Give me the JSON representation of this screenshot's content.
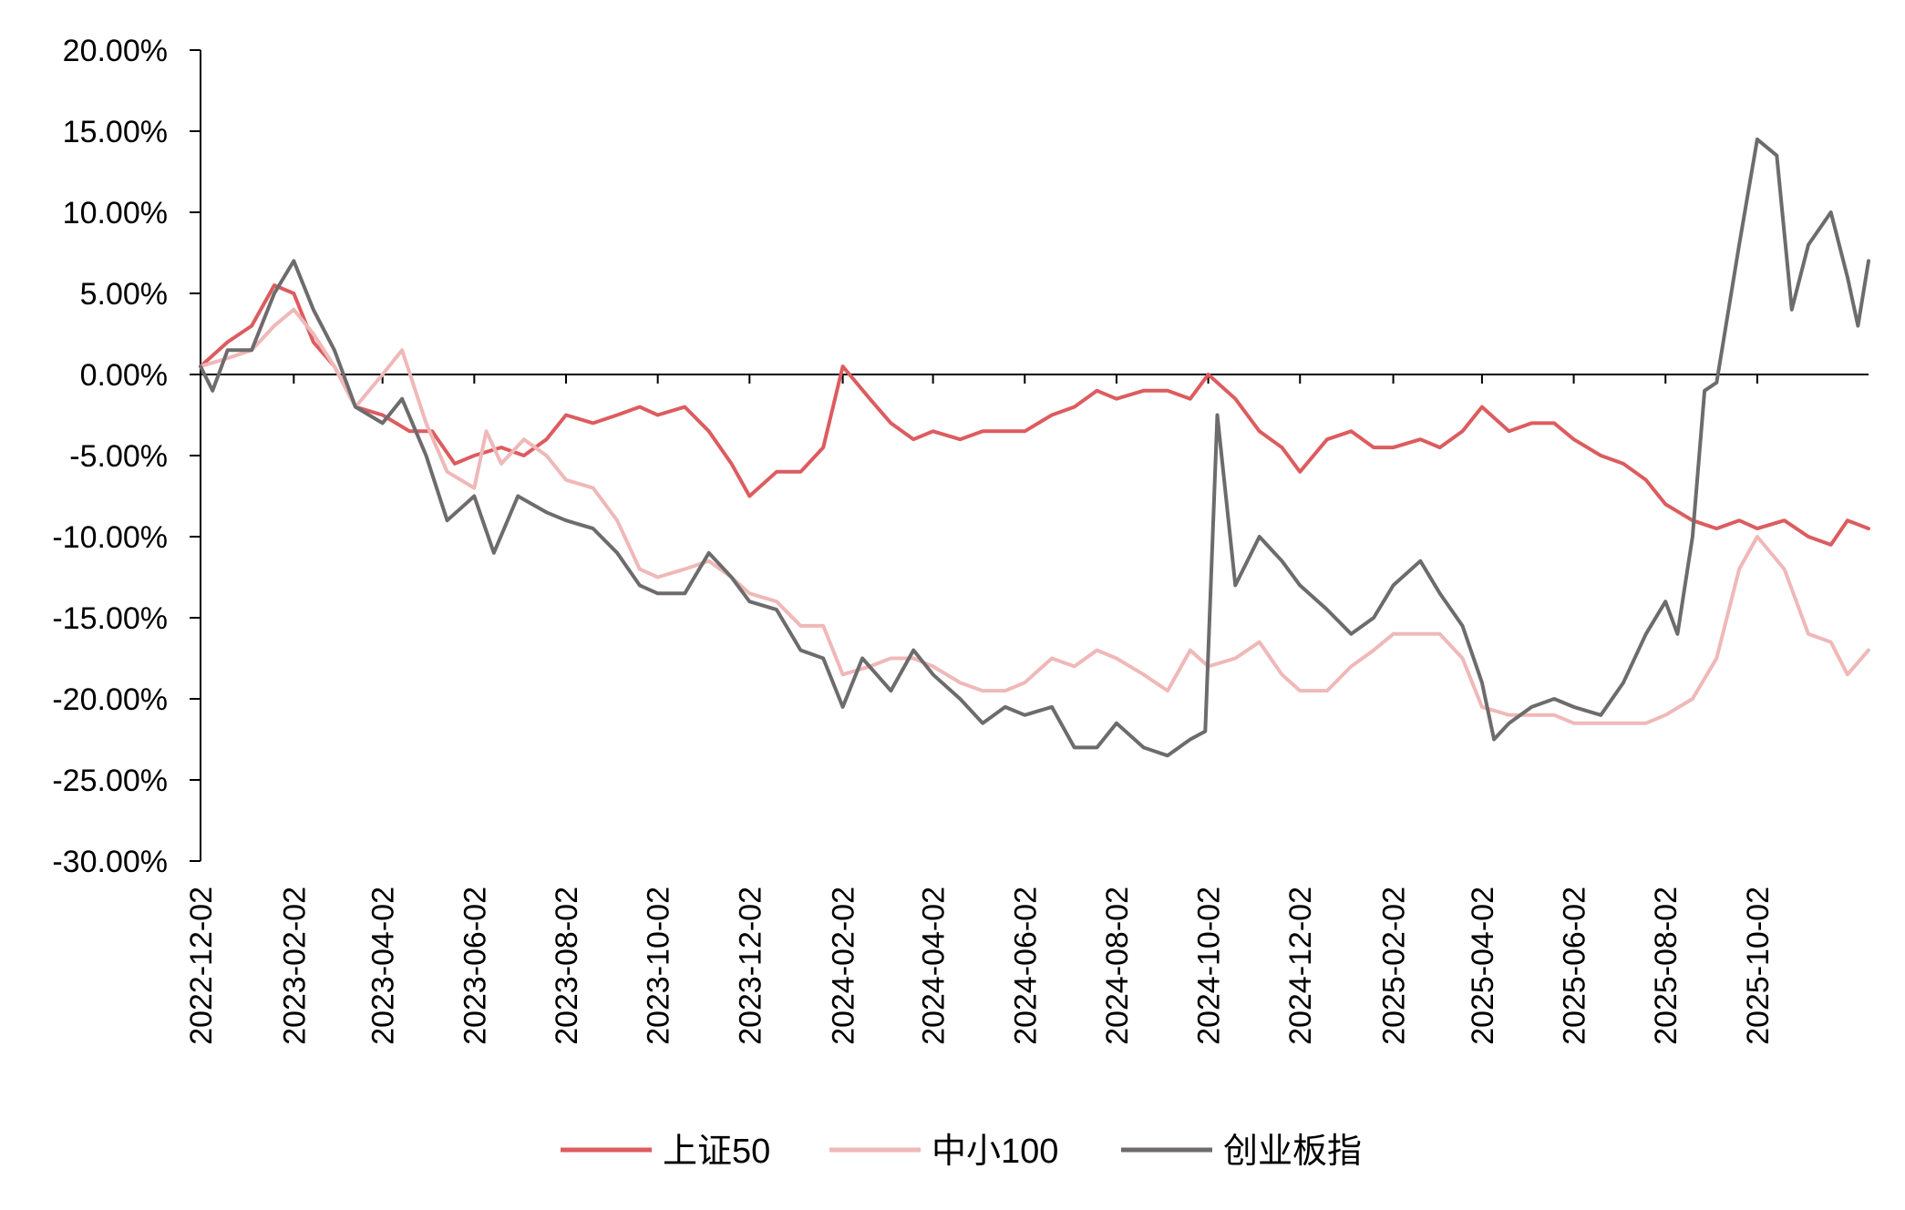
{
  "chart_data": {
    "type": "line",
    "title": "",
    "xlabel": "",
    "ylabel": "",
    "ylim": [
      -30,
      20
    ],
    "y_tick_values": [
      20,
      15,
      10,
      5,
      0,
      -5,
      -10,
      -15,
      -20,
      -25,
      -30
    ],
    "y_tick_labels": [
      "20.00%",
      "15.00%",
      "10.00%",
      "5.00%",
      "0.00%",
      "-5.00%",
      "-10.00%",
      "-15.00%",
      "-20.00%",
      "-25.00%",
      "-30.00%"
    ],
    "x_range": [
      "2022-12-02",
      "2025-12-15"
    ],
    "x_tick_labels": [
      "2022-12-02",
      "2023-02-02",
      "2023-04-02",
      "2023-06-02",
      "2023-08-02",
      "2023-10-02",
      "2023-12-02",
      "2024-02-02",
      "2024-04-02",
      "2024-06-02",
      "2024-08-02",
      "2024-10-02",
      "2024-12-02",
      "2025-02-02",
      "2025-04-02",
      "2025-06-02",
      "2025-08-02",
      "2025-10-02"
    ],
    "grid": false,
    "legend_position": "bottom",
    "series": [
      {
        "name": "上证50",
        "color": "#dc5c5f",
        "points": [
          [
            "2022-12-02",
            0.5
          ],
          [
            "2022-12-20",
            2.0
          ],
          [
            "2023-01-05",
            3.0
          ],
          [
            "2023-01-20",
            5.5
          ],
          [
            "2023-02-02",
            5.0
          ],
          [
            "2023-02-15",
            2.0
          ],
          [
            "2023-03-01",
            0.5
          ],
          [
            "2023-03-15",
            -2.0
          ],
          [
            "2023-04-02",
            -2.5
          ],
          [
            "2023-04-20",
            -3.5
          ],
          [
            "2023-05-05",
            -3.5
          ],
          [
            "2023-05-20",
            -5.5
          ],
          [
            "2023-06-02",
            -5.0
          ],
          [
            "2023-06-20",
            -4.5
          ],
          [
            "2023-07-05",
            -5.0
          ],
          [
            "2023-07-20",
            -4.0
          ],
          [
            "2023-08-02",
            -2.5
          ],
          [
            "2023-08-20",
            -3.0
          ],
          [
            "2023-09-05",
            -2.5
          ],
          [
            "2023-09-20",
            -2.0
          ],
          [
            "2023-10-02",
            -2.5
          ],
          [
            "2023-10-20",
            -2.0
          ],
          [
            "2023-11-05",
            -3.5
          ],
          [
            "2023-11-20",
            -5.5
          ],
          [
            "2023-12-02",
            -7.5
          ],
          [
            "2023-12-20",
            -6.0
          ],
          [
            "2024-01-05",
            -6.0
          ],
          [
            "2024-01-20",
            -4.5
          ],
          [
            "2024-02-02",
            0.5
          ],
          [
            "2024-02-20",
            -1.5
          ],
          [
            "2024-03-05",
            -3.0
          ],
          [
            "2024-03-20",
            -4.0
          ],
          [
            "2024-04-02",
            -3.5
          ],
          [
            "2024-04-20",
            -4.0
          ],
          [
            "2024-05-05",
            -3.5
          ],
          [
            "2024-05-20",
            -3.5
          ],
          [
            "2024-06-02",
            -3.5
          ],
          [
            "2024-06-20",
            -2.5
          ],
          [
            "2024-07-05",
            -2.0
          ],
          [
            "2024-07-20",
            -1.0
          ],
          [
            "2024-08-02",
            -1.5
          ],
          [
            "2024-08-20",
            -1.0
          ],
          [
            "2024-09-05",
            -1.0
          ],
          [
            "2024-09-20",
            -1.5
          ],
          [
            "2024-10-02",
            0.0
          ],
          [
            "2024-10-20",
            -1.5
          ],
          [
            "2024-11-05",
            -3.5
          ],
          [
            "2024-11-20",
            -4.5
          ],
          [
            "2024-12-02",
            -6.0
          ],
          [
            "2024-12-20",
            -4.0
          ],
          [
            "2025-01-05",
            -3.5
          ],
          [
            "2025-01-20",
            -4.5
          ],
          [
            "2025-02-02",
            -4.5
          ],
          [
            "2025-02-20",
            -4.0
          ],
          [
            "2025-03-05",
            -4.5
          ],
          [
            "2025-03-20",
            -3.5
          ],
          [
            "2025-04-02",
            -2.0
          ],
          [
            "2025-04-20",
            -3.5
          ],
          [
            "2025-05-05",
            -3.0
          ],
          [
            "2025-05-20",
            -3.0
          ],
          [
            "2025-06-02",
            -4.0
          ],
          [
            "2025-06-20",
            -5.0
          ],
          [
            "2025-07-05",
            -5.5
          ],
          [
            "2025-07-20",
            -6.5
          ],
          [
            "2025-08-02",
            -8.0
          ],
          [
            "2025-08-20",
            -9.0
          ],
          [
            "2025-09-05",
            -9.5
          ],
          [
            "2025-09-20",
            -9.0
          ],
          [
            "2025-10-02",
            -9.5
          ],
          [
            "2025-10-20",
            -9.0
          ],
          [
            "2025-11-05",
            -10.0
          ],
          [
            "2025-11-20",
            -10.5
          ],
          [
            "2025-12-01",
            -9.0
          ],
          [
            "2025-12-15",
            -9.5
          ]
        ]
      },
      {
        "name": "中小100",
        "color": "#f0b8b8",
        "points": [
          [
            "2022-12-02",
            0.5
          ],
          [
            "2022-12-20",
            1.0
          ],
          [
            "2023-01-05",
            1.5
          ],
          [
            "2023-01-20",
            3.0
          ],
          [
            "2023-02-02",
            4.0
          ],
          [
            "2023-02-15",
            2.5
          ],
          [
            "2023-03-01",
            0.5
          ],
          [
            "2023-03-15",
            -2.0
          ],
          [
            "2023-04-02",
            0.0
          ],
          [
            "2023-04-15",
            1.5
          ],
          [
            "2023-05-01",
            -3.0
          ],
          [
            "2023-05-15",
            -6.0
          ],
          [
            "2023-06-02",
            -7.0
          ],
          [
            "2023-06-10",
            -3.5
          ],
          [
            "2023-06-20",
            -5.5
          ],
          [
            "2023-07-05",
            -4.0
          ],
          [
            "2023-07-20",
            -5.0
          ],
          [
            "2023-08-02",
            -6.5
          ],
          [
            "2023-08-20",
            -7.0
          ],
          [
            "2023-09-05",
            -9.0
          ],
          [
            "2023-09-20",
            -12.0
          ],
          [
            "2023-10-02",
            -12.5
          ],
          [
            "2023-10-20",
            -12.0
          ],
          [
            "2023-11-05",
            -11.5
          ],
          [
            "2023-11-20",
            -12.5
          ],
          [
            "2023-12-02",
            -13.5
          ],
          [
            "2023-12-20",
            -14.0
          ],
          [
            "2024-01-05",
            -15.5
          ],
          [
            "2024-01-20",
            -15.5
          ],
          [
            "2024-02-02",
            -18.5
          ],
          [
            "2024-02-20",
            -18.0
          ],
          [
            "2024-03-05",
            -17.5
          ],
          [
            "2024-03-20",
            -17.5
          ],
          [
            "2024-04-02",
            -18.0
          ],
          [
            "2024-04-20",
            -19.0
          ],
          [
            "2024-05-05",
            -19.5
          ],
          [
            "2024-05-20",
            -19.5
          ],
          [
            "2024-06-02",
            -19.0
          ],
          [
            "2024-06-20",
            -17.5
          ],
          [
            "2024-07-05",
            -18.0
          ],
          [
            "2024-07-20",
            -17.0
          ],
          [
            "2024-08-02",
            -17.5
          ],
          [
            "2024-08-20",
            -18.5
          ],
          [
            "2024-09-05",
            -19.5
          ],
          [
            "2024-09-20",
            -17.0
          ],
          [
            "2024-10-02",
            -18.0
          ],
          [
            "2024-10-20",
            -17.5
          ],
          [
            "2024-11-05",
            -16.5
          ],
          [
            "2024-11-20",
            -18.5
          ],
          [
            "2024-12-02",
            -19.5
          ],
          [
            "2024-12-20",
            -19.5
          ],
          [
            "2025-01-05",
            -18.0
          ],
          [
            "2025-01-20",
            -17.0
          ],
          [
            "2025-02-02",
            -16.0
          ],
          [
            "2025-02-20",
            -16.0
          ],
          [
            "2025-03-05",
            -16.0
          ],
          [
            "2025-03-20",
            -17.5
          ],
          [
            "2025-04-02",
            -20.5
          ],
          [
            "2025-04-20",
            -21.0
          ],
          [
            "2025-05-05",
            -21.0
          ],
          [
            "2025-05-20",
            -21.0
          ],
          [
            "2025-06-02",
            -21.5
          ],
          [
            "2025-06-20",
            -21.5
          ],
          [
            "2025-07-05",
            -21.5
          ],
          [
            "2025-07-20",
            -21.5
          ],
          [
            "2025-08-02",
            -21.0
          ],
          [
            "2025-08-20",
            -20.0
          ],
          [
            "2025-09-05",
            -17.5
          ],
          [
            "2025-09-20",
            -12.0
          ],
          [
            "2025-10-02",
            -10.0
          ],
          [
            "2025-10-20",
            -12.0
          ],
          [
            "2025-11-05",
            -16.0
          ],
          [
            "2025-11-20",
            -16.5
          ],
          [
            "2025-12-01",
            -18.5
          ],
          [
            "2025-12-15",
            -17.0
          ]
        ]
      },
      {
        "name": "创业板指",
        "color": "#6d6b6c",
        "points": [
          [
            "2022-12-02",
            0.5
          ],
          [
            "2022-12-10",
            -1.0
          ],
          [
            "2022-12-20",
            1.5
          ],
          [
            "2023-01-05",
            1.5
          ],
          [
            "2023-01-20",
            5.0
          ],
          [
            "2023-02-02",
            7.0
          ],
          [
            "2023-02-15",
            4.0
          ],
          [
            "2023-03-01",
            1.5
          ],
          [
            "2023-03-15",
            -2.0
          ],
          [
            "2023-04-02",
            -3.0
          ],
          [
            "2023-04-15",
            -1.5
          ],
          [
            "2023-05-01",
            -5.0
          ],
          [
            "2023-05-15",
            -9.0
          ],
          [
            "2023-06-02",
            -7.5
          ],
          [
            "2023-06-15",
            -11.0
          ],
          [
            "2023-07-01",
            -7.5
          ],
          [
            "2023-07-20",
            -8.5
          ],
          [
            "2023-08-02",
            -9.0
          ],
          [
            "2023-08-20",
            -9.5
          ],
          [
            "2023-09-05",
            -11.0
          ],
          [
            "2023-09-20",
            -13.0
          ],
          [
            "2023-10-02",
            -13.5
          ],
          [
            "2023-10-20",
            -13.5
          ],
          [
            "2023-11-05",
            -11.0
          ],
          [
            "2023-11-20",
            -12.5
          ],
          [
            "2023-12-02",
            -14.0
          ],
          [
            "2023-12-20",
            -14.5
          ],
          [
            "2024-01-05",
            -17.0
          ],
          [
            "2024-01-20",
            -17.5
          ],
          [
            "2024-02-02",
            -20.5
          ],
          [
            "2024-02-15",
            -17.5
          ],
          [
            "2024-03-05",
            -19.5
          ],
          [
            "2024-03-20",
            -17.0
          ],
          [
            "2024-04-02",
            -18.5
          ],
          [
            "2024-04-20",
            -20.0
          ],
          [
            "2024-05-05",
            -21.5
          ],
          [
            "2024-05-20",
            -20.5
          ],
          [
            "2024-06-02",
            -21.0
          ],
          [
            "2024-06-20",
            -20.5
          ],
          [
            "2024-07-05",
            -23.0
          ],
          [
            "2024-07-20",
            -23.0
          ],
          [
            "2024-08-02",
            -21.5
          ],
          [
            "2024-08-20",
            -23.0
          ],
          [
            "2024-09-05",
            -23.5
          ],
          [
            "2024-09-20",
            -22.5
          ],
          [
            "2024-09-30",
            -22.0
          ],
          [
            "2024-10-08",
            -2.5
          ],
          [
            "2024-10-20",
            -13.0
          ],
          [
            "2024-11-05",
            -10.0
          ],
          [
            "2024-11-20",
            -11.5
          ],
          [
            "2024-12-02",
            -13.0
          ],
          [
            "2024-12-20",
            -14.5
          ],
          [
            "2025-01-05",
            -16.0
          ],
          [
            "2025-01-20",
            -15.0
          ],
          [
            "2025-02-02",
            -13.0
          ],
          [
            "2025-02-20",
            -11.5
          ],
          [
            "2025-03-05",
            -13.5
          ],
          [
            "2025-03-20",
            -15.5
          ],
          [
            "2025-04-02",
            -19.0
          ],
          [
            "2025-04-10",
            -22.5
          ],
          [
            "2025-04-20",
            -21.5
          ],
          [
            "2025-05-05",
            -20.5
          ],
          [
            "2025-05-20",
            -20.0
          ],
          [
            "2025-06-02",
            -20.5
          ],
          [
            "2025-06-20",
            -21.0
          ],
          [
            "2025-07-05",
            -19.0
          ],
          [
            "2025-07-20",
            -16.0
          ],
          [
            "2025-08-02",
            -14.0
          ],
          [
            "2025-08-10",
            -16.0
          ],
          [
            "2025-08-20",
            -10.0
          ],
          [
            "2025-08-28",
            -1.0
          ],
          [
            "2025-09-05",
            -0.5
          ],
          [
            "2025-09-20",
            8.0
          ],
          [
            "2025-10-02",
            14.5
          ],
          [
            "2025-10-15",
            13.5
          ],
          [
            "2025-10-25",
            4.0
          ],
          [
            "2025-11-05",
            8.0
          ],
          [
            "2025-11-20",
            10.0
          ],
          [
            "2025-12-01",
            6.0
          ],
          [
            "2025-12-08",
            3.0
          ],
          [
            "2025-12-15",
            7.0
          ]
        ]
      }
    ]
  }
}
